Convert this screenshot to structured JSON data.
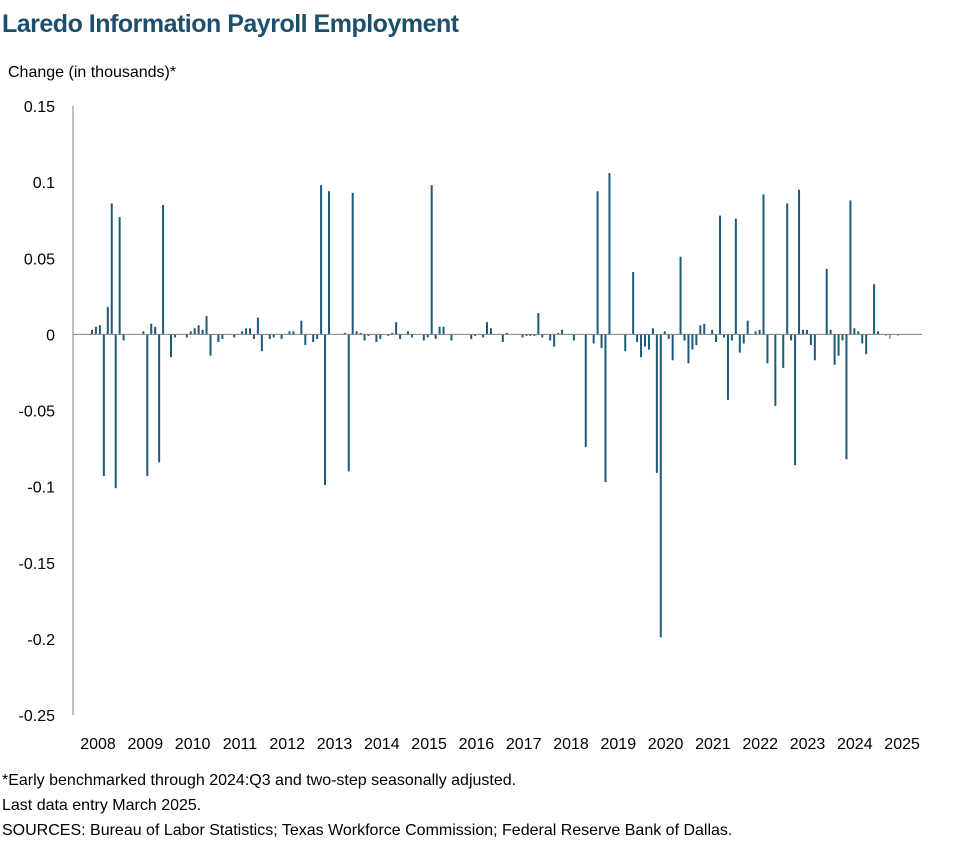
{
  "title": "Laredo Information Payroll Employment",
  "ylabel": "Change (in thousands)*",
  "notes": [
    "*Early benchmarked through 2024:Q3 and two-step seasonally adjusted.",
    "Last data entry March 2025.",
    "SOURCES: Bureau of Labor Statistics; Texas Workforce Commission; Federal Reserve Bank of Dallas."
  ],
  "colors": {
    "bar": "#1d5a7a",
    "bar_light": "#8aa9bd",
    "title": "#1d4e6b",
    "axis": "#808080"
  },
  "chart_data": {
    "type": "bar",
    "frequency": "monthly",
    "start": "2008-01",
    "xlabel": "",
    "ylabel": "Change (in thousands)*",
    "ylim": [
      -0.25,
      0.15
    ],
    "yticks": [
      0.15,
      0.1,
      0.05,
      0,
      -0.05,
      -0.1,
      -0.15,
      -0.2,
      -0.25
    ],
    "ytick_labels": [
      "0.15",
      "0.1",
      "0.05",
      "0",
      "-0.05",
      "-0.1",
      "-0.15",
      "-0.2",
      "-0.25"
    ],
    "year_labels": [
      "2008",
      "2009",
      "2010",
      "2011",
      "2012",
      "2013",
      "2014",
      "2015",
      "2016",
      "2017",
      "2018",
      "2019",
      "2020",
      "2021",
      "2022",
      "2023",
      "2024",
      "2025"
    ],
    "grid": false,
    "legend": "none",
    "values": [
      0.003,
      0.005,
      0.006,
      -0.093,
      0.018,
      0.086,
      -0.101,
      0.077,
      -0.004,
      0.0,
      0.0,
      0.0,
      0.0,
      0.002,
      -0.093,
      0.007,
      0.005,
      -0.084,
      0.085,
      0.0,
      -0.015,
      -0.002,
      0.0,
      0.0,
      -0.002,
      0.002,
      0.004,
      0.006,
      0.003,
      0.012,
      -0.014,
      0.0,
      -0.005,
      -0.003,
      0.0,
      0.0,
      -0.002,
      0.0,
      0.002,
      0.004,
      0.004,
      -0.003,
      0.011,
      -0.011,
      0.0,
      -0.003,
      -0.002,
      0.0,
      -0.003,
      0.0,
      0.002,
      0.002,
      0.0,
      0.009,
      -0.007,
      0.0,
      -0.005,
      -0.003,
      0.098,
      -0.099,
      0.094,
      0.0,
      0.0,
      0.0,
      0.001,
      -0.09,
      0.093,
      0.002,
      0.001,
      -0.004,
      -0.001,
      0.0,
      -0.005,
      -0.003,
      0.0,
      -0.001,
      0.001,
      0.008,
      -0.003,
      0.0,
      0.002,
      -0.002,
      0.0,
      0.0,
      -0.004,
      -0.002,
      0.098,
      -0.003,
      0.005,
      0.005,
      0.0,
      -0.004,
      0.0,
      0.0,
      0.0,
      0.0,
      -0.003,
      -0.001,
      0.0,
      -0.002,
      0.008,
      0.004,
      0.0,
      0.0,
      -0.005,
      0.001,
      0.0,
      0.0,
      0.0,
      -0.002,
      -0.001,
      -0.001,
      -0.001,
      0.014,
      -0.002,
      0.0,
      -0.004,
      -0.008,
      0.001,
      0.003,
      0.0,
      0.0,
      -0.004,
      0.0,
      0.0,
      -0.074,
      0.0,
      -0.006,
      0.094,
      -0.009,
      -0.097,
      0.106,
      0.0,
      0.0,
      0.0,
      -0.011,
      0.0,
      0.041,
      -0.005,
      -0.015,
      -0.008,
      -0.01,
      0.004,
      -0.091,
      -0.199,
      0.002,
      -0.003,
      -0.017,
      0.0,
      0.051,
      -0.004,
      -0.019,
      -0.01,
      -0.007,
      0.006,
      0.007,
      0.0,
      0.003,
      -0.005,
      0.078,
      -0.002,
      -0.043,
      -0.004,
      0.076,
      -0.012,
      -0.006,
      0.009,
      0.0,
      0.002,
      0.003,
      0.092,
      -0.019,
      0.0,
      -0.047,
      0.0,
      -0.022,
      0.086,
      -0.004,
      -0.086,
      0.095,
      0.003,
      0.003,
      -0.007,
      -0.017,
      0.0,
      0.0,
      0.043,
      0.003,
      -0.02,
      -0.014,
      -0.004,
      -0.082,
      0.088,
      0.004,
      0.002,
      -0.006,
      -0.013,
      0.0,
      0.033,
      0.002,
      0.0,
      -0.001,
      -0.003,
      0.0,
      -0.001,
      0.0,
      0.0
    ],
    "light_from_index": 200
  }
}
